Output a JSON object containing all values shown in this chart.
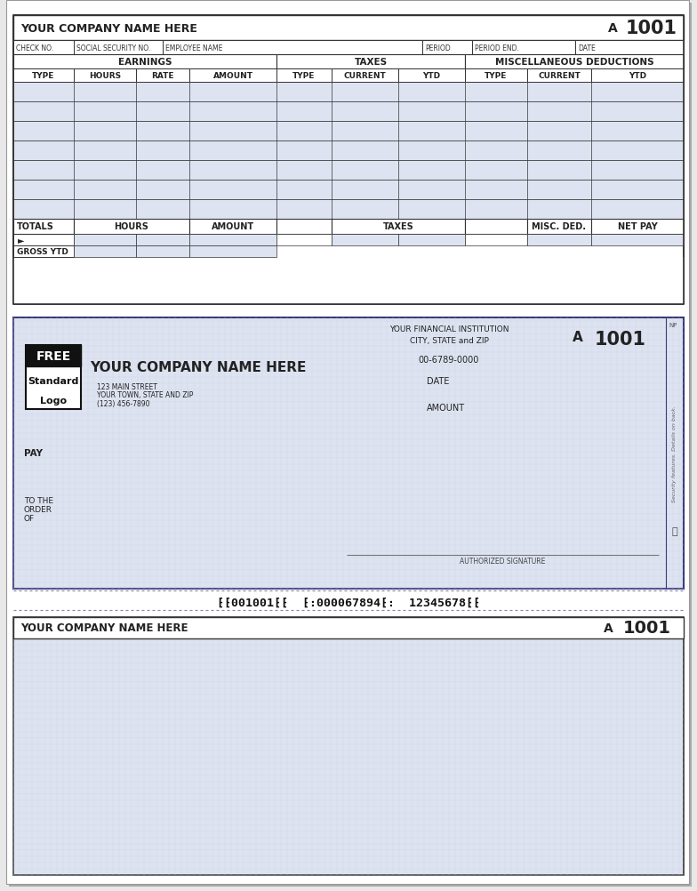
{
  "bg_color": "#e8e8e8",
  "paper_color": "#ffffff",
  "stub_bg": "#dde3f0",
  "check_bg": "#dde3f0",
  "border_color": "#3a3a7a",
  "dark_line": "#333333",
  "text_dark": "#222222",
  "section1": {
    "title_left": "YOUR COMPANY NAME HERE",
    "title_a": "A",
    "title_num": "1001",
    "row1_labels": [
      "CHECK NO.",
      "SOCIAL SECURITY NO.",
      "EMPLOYEE NAME",
      "PERIOD",
      "PERIOD END.",
      "DATE"
    ],
    "earnings_label": "EARNINGS",
    "taxes_label": "TAXES",
    "misc_label": "MISCELLANEOUS DEDUCTIONS",
    "col_headers_earn": [
      "TYPE",
      "HOURS",
      "RATE",
      "AMOUNT"
    ],
    "col_headers_taxes": [
      "TYPE",
      "CURRENT",
      "YTD"
    ],
    "col_headers_misc": [
      "TYPE",
      "CURRENT",
      "YTD"
    ],
    "totals_label": "TOTALS",
    "gross_ytd": "GROSS YTD",
    "arrow": "►",
    "num_data_rows": 7
  },
  "section2": {
    "fin_inst": "YOUR FINANCIAL INSTITUTION",
    "city_state": "CITY, STATE and ZIP",
    "routing": "00-6789-0000",
    "date_label": "DATE",
    "amount_label": "AMOUNT",
    "a_label": "A",
    "check_num": "1001",
    "company_name": "YOUR COMPANY NAME HERE",
    "address1": "123 MAIN STREET",
    "address2": "YOUR TOWN, STATE AND ZIP",
    "phone": "(123) 456-7890",
    "pay_label": "PAY",
    "to_the": "TO THE",
    "order": "ORDER",
    "of": "OF",
    "auth_sig": "AUTHORIZED SIGNATURE",
    "security_text": "Security features. Details on back.",
    "logo_text1": "FREE",
    "logo_text2": "Standard",
    "logo_text3": "Logo",
    "np_label": "NP",
    "micr": "\"001001\"  \":000067894\":  12345678\""
  },
  "section3": {
    "title_left": "YOUR COMPANY NAME HERE",
    "title_a": "A",
    "title_num": "1001"
  }
}
